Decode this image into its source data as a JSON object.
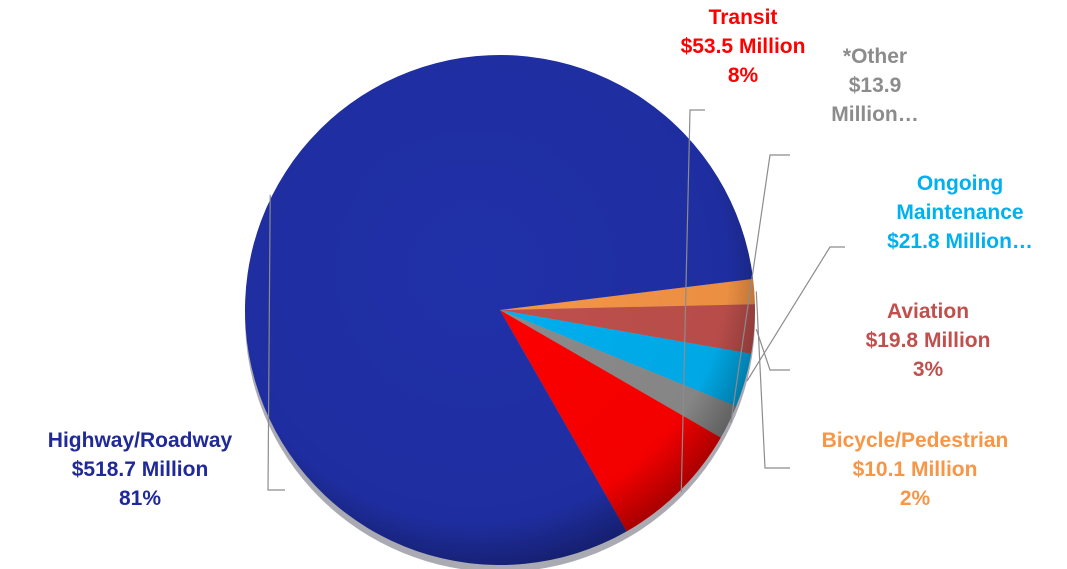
{
  "chart_data": {
    "type": "pie",
    "title": "",
    "slices": [
      {
        "name": "Highway/Roadway",
        "amount": "$518.7 Million",
        "pct": "81%",
        "value": 518.7,
        "color": "#2030a8"
      },
      {
        "name": "Transit",
        "amount": "$53.5 Million",
        "pct": "8%",
        "value": 53.5,
        "color": "#ff0000"
      },
      {
        "name": "*Other",
        "amount": "$13.9",
        "pct": "Million…",
        "value": 13.9,
        "color": "#8c8c8c"
      },
      {
        "name": "Ongoing",
        "amount": "Maintenance",
        "pct": "$21.8 Million…",
        "value": 21.8,
        "color": "#00b0f0"
      },
      {
        "name": "Aviation",
        "amount": "$19.8 Million",
        "pct": "3%",
        "value": 19.8,
        "color": "#c0504d"
      },
      {
        "name": "Bicycle/Pedestrian",
        "amount": "$10.1 Million",
        "pct": "2%",
        "value": 10.1,
        "color": "#f79646"
      }
    ],
    "label_colors": [
      "#20299a",
      "#ff0000",
      "#8c8c8c",
      "#00b0f0",
      "#c0504d",
      "#f79646"
    ]
  }
}
